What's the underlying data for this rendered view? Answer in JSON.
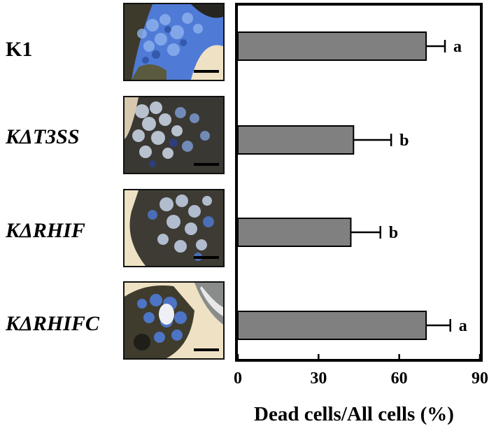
{
  "chart_data": {
    "type": "bar",
    "orientation": "horizontal",
    "categories": [
      "K1",
      "KΔT3SS",
      "KΔRHIF",
      "KΔRHIFC"
    ],
    "values": [
      70,
      43,
      42,
      70
    ],
    "errors": [
      7,
      14,
      11,
      9
    ],
    "significance": [
      "a",
      "b",
      "b",
      "a"
    ],
    "xlabel": "Dead cells/All cells (%)",
    "xlim": [
      0,
      90
    ],
    "xticks": [
      "0",
      "30",
      "60",
      "90"
    ],
    "bar_color": "#808080",
    "grid": false,
    "error_bar_side": "right"
  },
  "rows": [
    {
      "label": "K1",
      "italic": false,
      "image": "stained-tissue-micrograph"
    },
    {
      "label": "KΔT3SS",
      "italic": true,
      "image": "stained-tissue-micrograph"
    },
    {
      "label": "KΔRHIF",
      "italic": true,
      "image": "stained-tissue-micrograph"
    },
    {
      "label": "KΔRHIFC",
      "italic": true,
      "image": "stained-tissue-micrograph"
    }
  ],
  "colors": {
    "bar": "#808080",
    "stain_blue": "#3b6fd0",
    "tissue_dark": "#2e2a22",
    "frame": "#000000"
  }
}
